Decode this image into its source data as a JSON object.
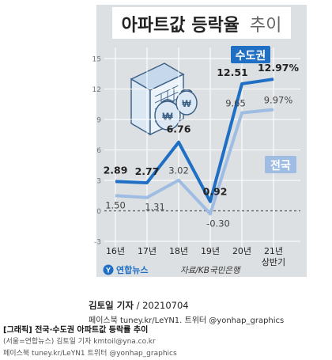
{
  "chart_data": {
    "type": "line",
    "title": "아파트값 등락율 추이",
    "title_emphasis": "아파트값 등락율",
    "title_suffix": "추이",
    "categories": [
      "16년",
      "17년",
      "18년",
      "19년",
      "20년",
      "21년"
    ],
    "category_sublabels": [
      "",
      "",
      "",
      "",
      "",
      "상반기"
    ],
    "y_ticks": [
      15,
      12,
      9,
      6,
      3,
      0,
      -3
    ],
    "ylim": [
      -3,
      15
    ],
    "grid": true,
    "series": [
      {
        "name": "수도권",
        "values": [
          2.89,
          2.77,
          6.76,
          0.92,
          12.51,
          12.97
        ],
        "labels": [
          "2.89",
          "2.77",
          "6.76",
          "0.92",
          "12.51",
          "12.97%"
        ],
        "color": "#1f6fc4"
      },
      {
        "name": "전국",
        "values": [
          1.5,
          1.31,
          3.02,
          -0.3,
          9.65,
          9.97
        ],
        "labels": [
          "1.50",
          "1.31",
          "3.02",
          "-0.30",
          "9.65",
          "9.97%"
        ],
        "color": "#9fbde3"
      }
    ],
    "source": "자료/KB국민은행"
  },
  "logo_text": "연합뉴스",
  "byline": {
    "reporter": "김토일 기자",
    "date": "/ 20210704"
  },
  "social": "페이스북 tuney.kr/LeYN1. 트위터 @yonhap_graphics",
  "caption": {
    "title": "[그래픽] 전국·수도권 아파트값 등락률 추이",
    "credit": "(서울=연합뉴스) 김토일 기자 kmtoil@yna.co.kr",
    "social": "페이스북 tuney.kr/LeYN1 트위터 @yonhap_graphics"
  },
  "colors": {
    "frame_bg": "#dde0e3",
    "accent_blue": "#1f6fc4",
    "light_blue": "#9fbde3"
  }
}
